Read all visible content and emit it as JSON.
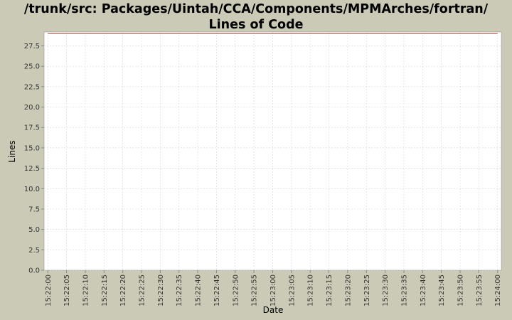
{
  "chart_data": {
    "type": "line",
    "title": "/trunk/src: Packages/Uintah/CCA/Components/MPMArches/fortran/ Lines of Code",
    "x_label": "Date",
    "y_label": "Lines",
    "x": [
      "15:22:00",
      "15:24:00"
    ],
    "series": [
      {
        "name": "Lines",
        "color": "#e04848",
        "values": [
          29,
          29
        ]
      }
    ],
    "xlim": [
      "15:21:59",
      "15:24:01"
    ],
    "xticks": [
      "15:22:00",
      "15:22:05",
      "15:22:10",
      "15:22:15",
      "15:22:20",
      "15:22:25",
      "15:22:30",
      "15:22:35",
      "15:22:40",
      "15:22:45",
      "15:22:50",
      "15:22:55",
      "15:23:00",
      "15:23:05",
      "15:23:10",
      "15:23:15",
      "15:23:20",
      "15:23:25",
      "15:23:30",
      "15:23:35",
      "15:23:40",
      "15:23:45",
      "15:23:50",
      "15:23:55",
      "15:24:00"
    ],
    "ylim": [
      0,
      29.2
    ],
    "yticks": [
      {
        "value": 0,
        "label": "0.0"
      },
      2.5,
      {
        "value": 5,
        "label": "5.0"
      },
      7.5,
      {
        "value": 10,
        "label": "10.0"
      },
      12.5,
      {
        "value": 15,
        "label": "15.0"
      },
      17.5,
      {
        "value": 20,
        "label": "20.0"
      },
      22.5,
      {
        "value": 25,
        "label": "25.0"
      },
      27.5
    ],
    "grid": true
  }
}
